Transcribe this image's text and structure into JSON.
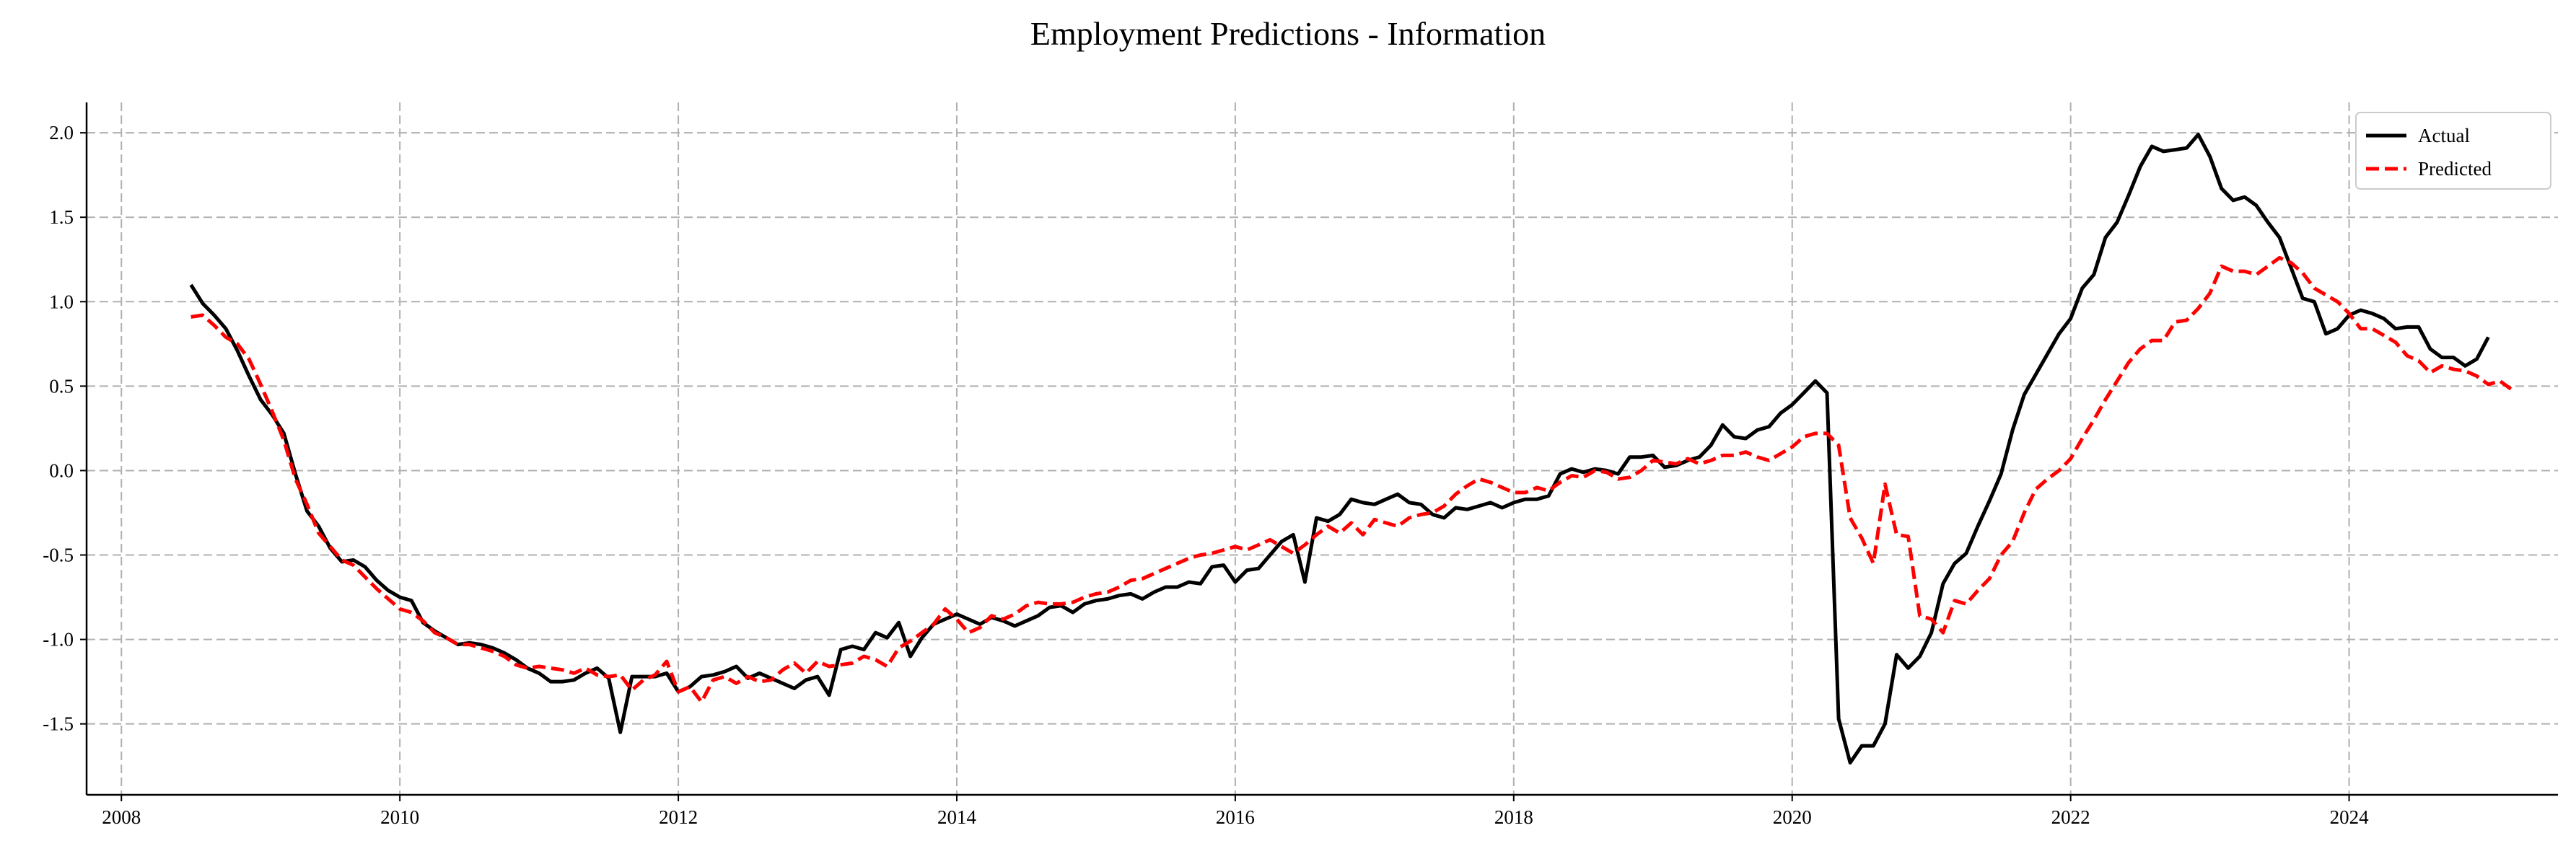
{
  "chart_data": {
    "type": "line",
    "title": "Employment Predictions - Information",
    "xlabel": "",
    "ylabel": "",
    "x_start": "2008-07",
    "x_end": "2024-12",
    "x_ticks": [
      "2008",
      "2010",
      "2012",
      "2014",
      "2016",
      "2018",
      "2020",
      "2022",
      "2024"
    ],
    "y_ticks": [
      "-1.5",
      "-1.0",
      "-0.5",
      "0.0",
      "0.5",
      "1.0",
      "1.5",
      "2.0"
    ],
    "xlim": [
      "2007-10",
      "2025-07"
    ],
    "ylim": [
      -1.92,
      2.18
    ],
    "grid": true,
    "legend_position": "top-right",
    "series": [
      {
        "name": "Actual",
        "color": "#000000",
        "style": "solid",
        "values": [
          1.1,
          0.99,
          0.92,
          0.84,
          0.71,
          0.56,
          0.42,
          0.33,
          0.22,
          -0.02,
          -0.24,
          -0.33,
          -0.46,
          -0.54,
          -0.53,
          -0.57,
          -0.65,
          -0.71,
          -0.75,
          -0.77,
          -0.9,
          -0.95,
          -0.99,
          -1.03,
          -1.02,
          -1.03,
          -1.05,
          -1.08,
          -1.12,
          -1.17,
          -1.2,
          -1.25,
          -1.25,
          -1.24,
          -1.2,
          -1.17,
          -1.23,
          -1.55,
          -1.22,
          -1.22,
          -1.22,
          -1.2,
          -1.31,
          -1.28,
          -1.22,
          -1.21,
          -1.19,
          -1.16,
          -1.23,
          -1.2,
          -1.23,
          -1.26,
          -1.29,
          -1.24,
          -1.22,
          -1.33,
          -1.06,
          -1.04,
          -1.06,
          -0.96,
          -0.99,
          -0.9,
          -1.1,
          -0.99,
          -0.91,
          -0.88,
          -0.85,
          -0.88,
          -0.91,
          -0.87,
          -0.89,
          -0.92,
          -0.89,
          -0.86,
          -0.81,
          -0.8,
          -0.84,
          -0.79,
          -0.77,
          -0.76,
          -0.74,
          -0.73,
          -0.76,
          -0.72,
          -0.69,
          -0.69,
          -0.66,
          -0.67,
          -0.57,
          -0.56,
          -0.66,
          -0.59,
          -0.58,
          -0.5,
          -0.42,
          -0.38,
          -0.66,
          -0.28,
          -0.3,
          -0.26,
          -0.17,
          -0.19,
          -0.2,
          -0.17,
          -0.14,
          -0.19,
          -0.2,
          -0.26,
          -0.28,
          -0.22,
          -0.23,
          -0.21,
          -0.19,
          -0.22,
          -0.19,
          -0.17,
          -0.17,
          -0.15,
          -0.02,
          0.01,
          -0.01,
          0.01,
          0.0,
          -0.02,
          0.08,
          0.08,
          0.09,
          0.02,
          0.03,
          0.06,
          0.08,
          0.15,
          0.27,
          0.2,
          0.19,
          0.24,
          0.26,
          0.34,
          0.39,
          0.46,
          0.53,
          0.46,
          -1.47,
          -1.73,
          -1.63,
          -1.63,
          -1.5,
          -1.09,
          -1.17,
          -1.1,
          -0.96,
          -0.67,
          -0.55,
          -0.49,
          -0.33,
          -0.18,
          -0.02,
          0.24,
          0.45,
          0.57,
          0.69,
          0.81,
          0.9,
          1.08,
          1.16,
          1.38,
          1.47,
          1.63,
          1.8,
          1.92,
          1.89,
          1.9,
          1.91,
          1.99,
          1.86,
          1.67,
          1.6,
          1.62,
          1.57,
          1.47,
          1.38,
          1.2,
          1.02,
          1.0,
          0.81,
          0.84,
          0.92,
          0.95,
          0.93,
          0.9,
          0.84,
          0.85,
          0.85,
          0.72,
          0.67,
          0.67,
          0.62,
          0.66,
          0.79
        ]
      },
      {
        "name": "Predicted",
        "color": "#ff0000",
        "style": "dashed",
        "values": [
          0.91,
          0.92,
          0.86,
          0.79,
          0.75,
          0.66,
          0.51,
          0.35,
          0.18,
          -0.05,
          -0.2,
          -0.37,
          -0.45,
          -0.53,
          -0.56,
          -0.63,
          -0.7,
          -0.76,
          -0.82,
          -0.84,
          -0.89,
          -0.96,
          -0.99,
          -1.03,
          -1.03,
          -1.05,
          -1.07,
          -1.1,
          -1.15,
          -1.17,
          -1.16,
          -1.17,
          -1.18,
          -1.2,
          -1.17,
          -1.21,
          -1.22,
          -1.21,
          -1.3,
          -1.24,
          -1.21,
          -1.13,
          -1.31,
          -1.28,
          -1.37,
          -1.24,
          -1.22,
          -1.26,
          -1.22,
          -1.25,
          -1.24,
          -1.18,
          -1.14,
          -1.2,
          -1.13,
          -1.16,
          -1.15,
          -1.14,
          -1.1,
          -1.12,
          -1.16,
          -1.05,
          -1.01,
          -0.96,
          -0.91,
          -0.82,
          -0.88,
          -0.96,
          -0.93,
          -0.86,
          -0.88,
          -0.85,
          -0.8,
          -0.78,
          -0.79,
          -0.79,
          -0.78,
          -0.75,
          -0.73,
          -0.72,
          -0.69,
          -0.65,
          -0.64,
          -0.61,
          -0.58,
          -0.55,
          -0.52,
          -0.5,
          -0.49,
          -0.47,
          -0.45,
          -0.47,
          -0.44,
          -0.41,
          -0.45,
          -0.49,
          -0.44,
          -0.38,
          -0.33,
          -0.37,
          -0.31,
          -0.38,
          -0.29,
          -0.31,
          -0.33,
          -0.28,
          -0.26,
          -0.25,
          -0.21,
          -0.14,
          -0.09,
          -0.05,
          -0.07,
          -0.1,
          -0.13,
          -0.13,
          -0.1,
          -0.12,
          -0.07,
          -0.03,
          -0.04,
          0.0,
          -0.01,
          -0.05,
          -0.04,
          0.0,
          0.06,
          0.05,
          0.04,
          0.07,
          0.04,
          0.06,
          0.09,
          0.09,
          0.11,
          0.08,
          0.06,
          0.1,
          0.14,
          0.2,
          0.22,
          0.22,
          0.15,
          -0.28,
          -0.4,
          -0.55,
          -0.08,
          -0.38,
          -0.39,
          -0.86,
          -0.88,
          -0.96,
          -0.77,
          -0.79,
          -0.71,
          -0.64,
          -0.5,
          -0.42,
          -0.25,
          -0.11,
          -0.05,
          0.0,
          0.07,
          0.19,
          0.3,
          0.42,
          0.53,
          0.64,
          0.72,
          0.77,
          0.77,
          0.88,
          0.89,
          0.96,
          1.05,
          1.21,
          1.18,
          1.18,
          1.16,
          1.21,
          1.26,
          1.23,
          1.17,
          1.08,
          1.04,
          1.0,
          0.93,
          0.84,
          0.84,
          0.8,
          0.76,
          0.68,
          0.65,
          0.58,
          0.62,
          0.6,
          0.59,
          0.56,
          0.51,
          0.53,
          0.48
        ]
      }
    ]
  }
}
